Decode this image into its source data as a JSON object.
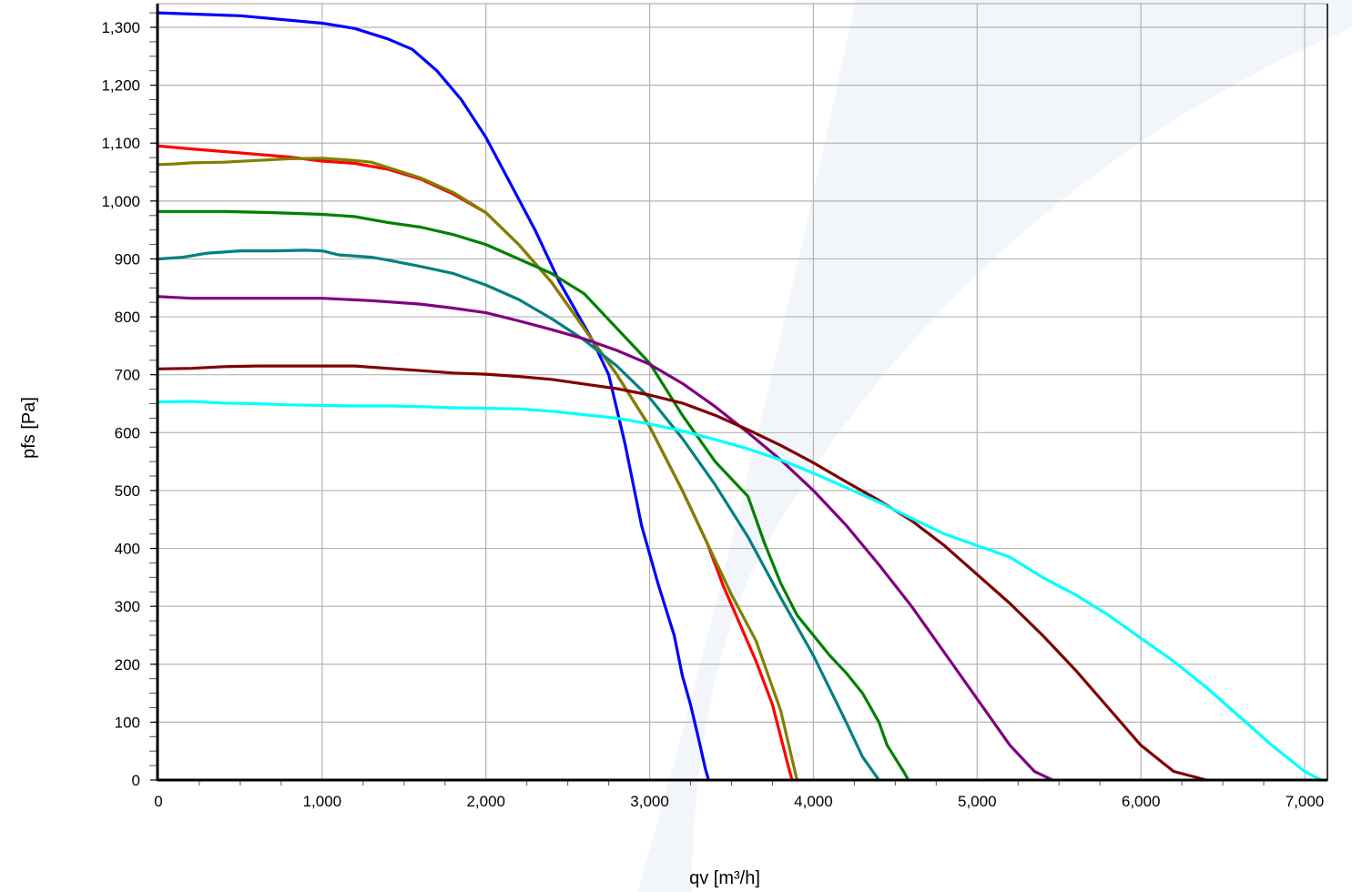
{
  "chart_data": {
    "type": "line",
    "title": "",
    "xlabel": "qv [m³/h]",
    "ylabel": "pfs [Pa]",
    "xlim": [
      0,
      7100
    ],
    "ylim": [
      0,
      1330
    ],
    "x_ticks": [
      0,
      1000,
      2000,
      3000,
      4000,
      5000,
      6000,
      7000
    ],
    "x_tick_labels": [
      "0",
      "1,000",
      "2,000",
      "3,000",
      "4,000",
      "5,000",
      "6,000",
      "7,000"
    ],
    "y_ticks": [
      0,
      100,
      200,
      300,
      400,
      500,
      600,
      700,
      800,
      900,
      1000,
      1100,
      1200,
      1300
    ],
    "y_tick_labels": [
      "0",
      "100",
      "200",
      "300",
      "400",
      "500",
      "600",
      "700",
      "800",
      "900",
      "1,000",
      "1,100",
      "1,200",
      "1,300"
    ],
    "grid": true,
    "legend": "none",
    "series": [
      {
        "color": "#0000ff",
        "points": [
          [
            0,
            1325
          ],
          [
            500,
            1320
          ],
          [
            1000,
            1307
          ],
          [
            1200,
            1298
          ],
          [
            1400,
            1280
          ],
          [
            1550,
            1262
          ],
          [
            1700,
            1225
          ],
          [
            1850,
            1175
          ],
          [
            2000,
            1110
          ],
          [
            2150,
            1030
          ],
          [
            2300,
            950
          ],
          [
            2450,
            860
          ],
          [
            2550,
            810
          ],
          [
            2650,
            760
          ],
          [
            2750,
            700
          ],
          [
            2850,
            580
          ],
          [
            2950,
            440
          ],
          [
            3050,
            340
          ],
          [
            3150,
            250
          ],
          [
            3200,
            180
          ],
          [
            3250,
            130
          ],
          [
            3300,
            70
          ],
          [
            3340,
            20
          ],
          [
            3360,
            0
          ]
        ]
      },
      {
        "color": "#ff0000",
        "points": [
          [
            0,
            1095
          ],
          [
            200,
            1090
          ],
          [
            500,
            1083
          ],
          [
            800,
            1076
          ],
          [
            1000,
            1069
          ],
          [
            1200,
            1065
          ],
          [
            1400,
            1055
          ],
          [
            1600,
            1038
          ],
          [
            1800,
            1012
          ],
          [
            2000,
            980
          ],
          [
            2200,
            925
          ],
          [
            2400,
            860
          ],
          [
            2600,
            780
          ],
          [
            2800,
            700
          ],
          [
            3000,
            610
          ],
          [
            3200,
            500
          ],
          [
            3350,
            410
          ],
          [
            3450,
            335
          ],
          [
            3550,
            270
          ],
          [
            3650,
            205
          ],
          [
            3750,
            130
          ],
          [
            3850,
            20
          ],
          [
            3870,
            0
          ]
        ]
      },
      {
        "color": "#808000",
        "points": [
          [
            0,
            1063
          ],
          [
            100,
            1064
          ],
          [
            200,
            1066
          ],
          [
            400,
            1067
          ],
          [
            600,
            1070
          ],
          [
            800,
            1073
          ],
          [
            1000,
            1074
          ],
          [
            1200,
            1070
          ],
          [
            1300,
            1067
          ],
          [
            1400,
            1058
          ],
          [
            1600,
            1040
          ],
          [
            1800,
            1015
          ],
          [
            2000,
            980
          ],
          [
            2200,
            925
          ],
          [
            2400,
            860
          ],
          [
            2600,
            780
          ],
          [
            2800,
            700
          ],
          [
            3000,
            610
          ],
          [
            3200,
            500
          ],
          [
            3350,
            410
          ],
          [
            3500,
            320
          ],
          [
            3650,
            240
          ],
          [
            3800,
            120
          ],
          [
            3900,
            0
          ]
        ]
      },
      {
        "color": "#008000",
        "points": [
          [
            0,
            982
          ],
          [
            400,
            982
          ],
          [
            700,
            980
          ],
          [
            1000,
            977
          ],
          [
            1200,
            973
          ],
          [
            1400,
            963
          ],
          [
            1600,
            955
          ],
          [
            1800,
            942
          ],
          [
            2000,
            925
          ],
          [
            2200,
            900
          ],
          [
            2400,
            875
          ],
          [
            2600,
            840
          ],
          [
            2800,
            780
          ],
          [
            3000,
            720
          ],
          [
            3200,
            630
          ],
          [
            3400,
            550
          ],
          [
            3600,
            490
          ],
          [
            3700,
            410
          ],
          [
            3800,
            340
          ],
          [
            3900,
            285
          ],
          [
            4000,
            250
          ],
          [
            4100,
            215
          ],
          [
            4200,
            185
          ],
          [
            4300,
            150
          ],
          [
            4400,
            100
          ],
          [
            4450,
            60
          ],
          [
            4550,
            15
          ],
          [
            4580,
            0
          ]
        ]
      },
      {
        "color": "#008080",
        "points": [
          [
            0,
            900
          ],
          [
            150,
            903
          ],
          [
            300,
            910
          ],
          [
            500,
            914
          ],
          [
            700,
            914
          ],
          [
            900,
            915
          ],
          [
            1000,
            914
          ],
          [
            1100,
            907
          ],
          [
            1300,
            903
          ],
          [
            1400,
            898
          ],
          [
            1600,
            887
          ],
          [
            1800,
            875
          ],
          [
            2000,
            855
          ],
          [
            2200,
            830
          ],
          [
            2400,
            797
          ],
          [
            2600,
            760
          ],
          [
            2800,
            715
          ],
          [
            3000,
            660
          ],
          [
            3200,
            590
          ],
          [
            3400,
            510
          ],
          [
            3600,
            420
          ],
          [
            3800,
            315
          ],
          [
            4000,
            215
          ],
          [
            4200,
            100
          ],
          [
            4300,
            40
          ],
          [
            4400,
            0
          ]
        ]
      },
      {
        "color": "#800080",
        "points": [
          [
            0,
            835
          ],
          [
            200,
            832
          ],
          [
            500,
            832
          ],
          [
            800,
            832
          ],
          [
            1000,
            832
          ],
          [
            1300,
            828
          ],
          [
            1600,
            822
          ],
          [
            1800,
            815
          ],
          [
            2000,
            807
          ],
          [
            2200,
            793
          ],
          [
            2400,
            778
          ],
          [
            2600,
            762
          ],
          [
            2800,
            742
          ],
          [
            3000,
            718
          ],
          [
            3200,
            685
          ],
          [
            3400,
            645
          ],
          [
            3600,
            600
          ],
          [
            3800,
            553
          ],
          [
            4000,
            500
          ],
          [
            4200,
            440
          ],
          [
            4400,
            372
          ],
          [
            4600,
            300
          ],
          [
            4800,
            220
          ],
          [
            5000,
            140
          ],
          [
            5200,
            60
          ],
          [
            5350,
            15
          ],
          [
            5460,
            0
          ]
        ]
      },
      {
        "color": "#800000",
        "points": [
          [
            0,
            710
          ],
          [
            200,
            711
          ],
          [
            400,
            714
          ],
          [
            600,
            715
          ],
          [
            800,
            715
          ],
          [
            1000,
            715
          ],
          [
            1200,
            715
          ],
          [
            1400,
            711
          ],
          [
            1600,
            707
          ],
          [
            1800,
            703
          ],
          [
            2000,
            701
          ],
          [
            2200,
            697
          ],
          [
            2400,
            692
          ],
          [
            2600,
            684
          ],
          [
            2800,
            676
          ],
          [
            3000,
            665
          ],
          [
            3200,
            651
          ],
          [
            3400,
            630
          ],
          [
            3600,
            605
          ],
          [
            3800,
            578
          ],
          [
            4000,
            548
          ],
          [
            4200,
            515
          ],
          [
            4400,
            483
          ],
          [
            4600,
            448
          ],
          [
            4800,
            405
          ],
          [
            5000,
            355
          ],
          [
            5200,
            305
          ],
          [
            5400,
            250
          ],
          [
            5600,
            190
          ],
          [
            5800,
            125
          ],
          [
            6000,
            60
          ],
          [
            6200,
            15
          ],
          [
            6400,
            0
          ]
        ]
      },
      {
        "color": "#00ffff",
        "points": [
          [
            0,
            653
          ],
          [
            200,
            654
          ],
          [
            400,
            651
          ],
          [
            600,
            650
          ],
          [
            800,
            648
          ],
          [
            1000,
            647
          ],
          [
            1200,
            646
          ],
          [
            1400,
            646
          ],
          [
            1600,
            645
          ],
          [
            1800,
            643
          ],
          [
            2000,
            642
          ],
          [
            2200,
            641
          ],
          [
            2400,
            637
          ],
          [
            2600,
            631
          ],
          [
            2800,
            625
          ],
          [
            3000,
            615
          ],
          [
            3200,
            603
          ],
          [
            3400,
            588
          ],
          [
            3600,
            572
          ],
          [
            3800,
            553
          ],
          [
            4000,
            530
          ],
          [
            4200,
            505
          ],
          [
            4400,
            480
          ],
          [
            4600,
            452
          ],
          [
            4800,
            425
          ],
          [
            5000,
            405
          ],
          [
            5200,
            385
          ],
          [
            5400,
            350
          ],
          [
            5600,
            320
          ],
          [
            5800,
            285
          ],
          [
            6000,
            245
          ],
          [
            6200,
            205
          ],
          [
            6400,
            160
          ],
          [
            6600,
            110
          ],
          [
            6800,
            60
          ],
          [
            7000,
            15
          ],
          [
            7100,
            0
          ]
        ]
      }
    ]
  }
}
